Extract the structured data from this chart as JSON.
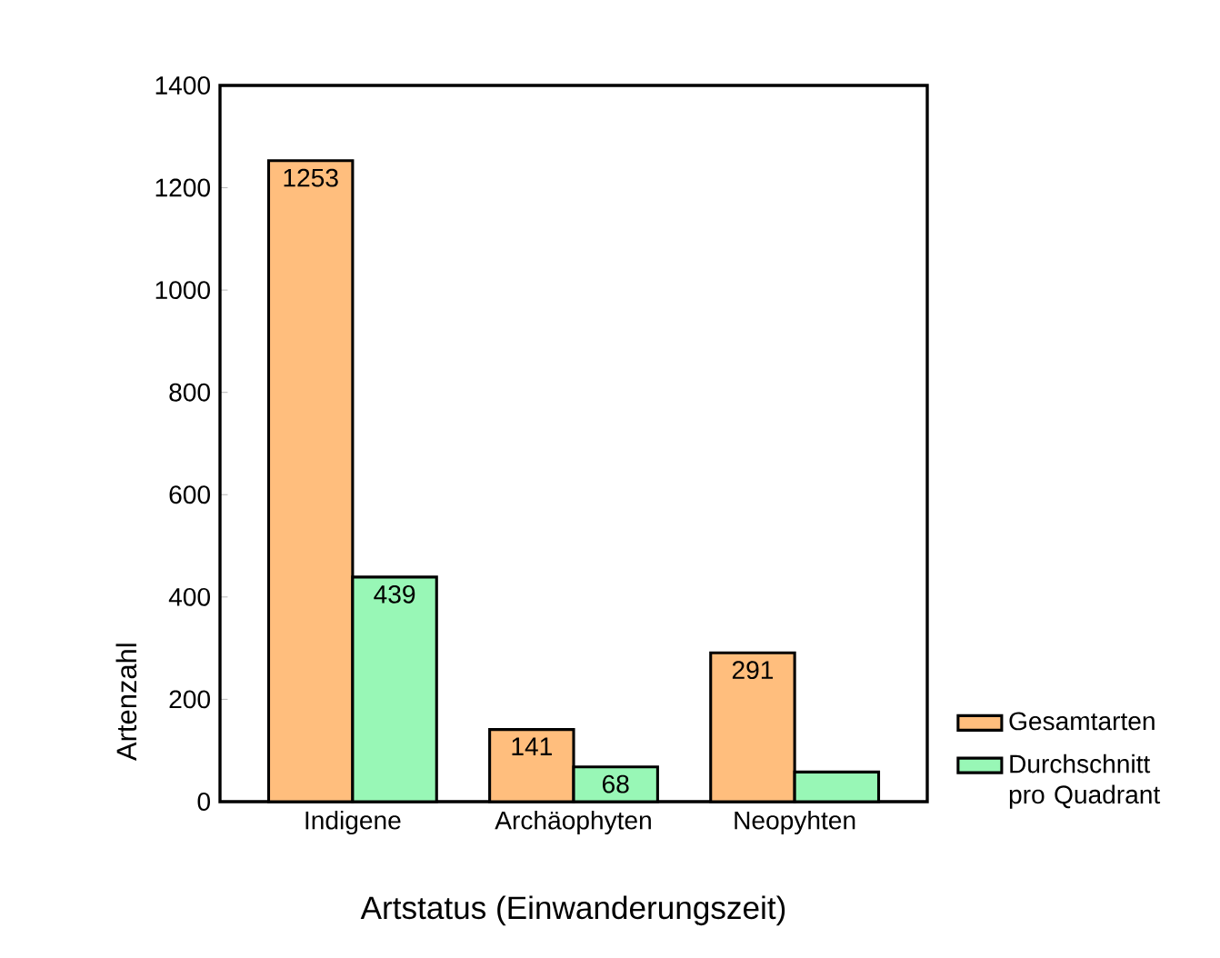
{
  "chart_data": {
    "type": "bar",
    "xlabel": "Artstatus (Einwanderungszeit)",
    "ylabel": "Artenzahl",
    "categories": [
      "Indigene",
      "Archäophyten",
      "Neopyhten"
    ],
    "series": [
      {
        "name": "Gesamtarten",
        "color": "#ffbe7d",
        "values": [
          1253,
          141,
          291
        ],
        "value_labels": [
          "1253",
          "141",
          "291"
        ]
      },
      {
        "name": "Durchschnitt pro Quadrant",
        "color": "#98f7b6",
        "values": [
          439,
          68,
          58
        ],
        "value_labels": [
          "439",
          "68",
          null
        ]
      }
    ],
    "ylim": [
      0,
      1400
    ],
    "yticks": [
      0,
      200,
      400,
      600,
      800,
      1000,
      1200,
      1400
    ],
    "legend": "right"
  }
}
